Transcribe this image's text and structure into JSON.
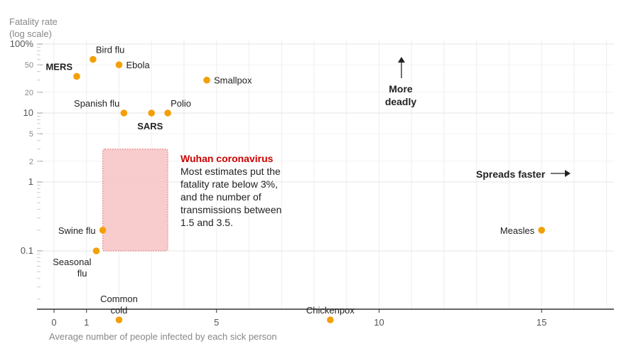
{
  "chart_data": {
    "type": "scatter",
    "title": "",
    "ylabel_lines": [
      "Fatality rate",
      "(log scale)"
    ],
    "xlabel": "Average number of people infected by each sick person",
    "yscale": "log",
    "xlim": [
      -0.5,
      17
    ],
    "ylim_log": [
      0.01,
      100
    ],
    "x_ticks": [
      {
        "v": 0,
        "label": "0"
      },
      {
        "v": 1,
        "label": "1"
      },
      {
        "v": 5,
        "label": "5"
      },
      {
        "v": 10,
        "label": "10"
      },
      {
        "v": 15,
        "label": "15"
      }
    ],
    "y_ticks": [
      {
        "v": 100,
        "label": "100%",
        "major": true
      },
      {
        "v": 50,
        "label": "50",
        "major": false
      },
      {
        "v": 20,
        "label": "20",
        "major": false
      },
      {
        "v": 10,
        "label": "10",
        "major": true
      },
      {
        "v": 5,
        "label": "5",
        "major": false
      },
      {
        "v": 2,
        "label": "2",
        "major": false
      },
      {
        "v": 1,
        "label": "1",
        "major": true
      },
      {
        "v": 0.1,
        "label": "0.1",
        "major": true
      }
    ],
    "colors": {
      "point": "#f2a007",
      "grid": "#eeeeee",
      "axis": "#333333",
      "tick": "#888888",
      "region_fill": "#f7c6c6",
      "region_stroke": "#e47777",
      "accent": "#cc0000",
      "text": "#222222"
    },
    "points": [
      {
        "name": "Bird flu",
        "x": 1.2,
        "y": 60,
        "bold": false,
        "label_pos": "above-right"
      },
      {
        "name": "MERS",
        "x": 0.7,
        "y": 34,
        "bold": true,
        "label_pos": "above-left"
      },
      {
        "name": "Ebola",
        "x": 2.0,
        "y": 50,
        "bold": false,
        "label_pos": "right"
      },
      {
        "name": "Smallpox",
        "x": 4.7,
        "y": 30,
        "bold": false,
        "label_pos": "right"
      },
      {
        "name": "Spanish flu",
        "x": 2.15,
        "y": 10,
        "bold": false,
        "label_pos": "above-left"
      },
      {
        "name": "SARS",
        "x": 3.0,
        "y": 10,
        "bold": true,
        "label_pos": "below"
      },
      {
        "name": "Polio",
        "x": 3.5,
        "y": 10,
        "bold": false,
        "label_pos": "above-right"
      },
      {
        "name": "Swine flu",
        "x": 1.5,
        "y": 0.2,
        "bold": false,
        "label_pos": "left"
      },
      {
        "name": "Seasonal flu",
        "x": 1.3,
        "y": 0.1,
        "bold": false,
        "label_pos": "below-left"
      },
      {
        "name": "Common cold",
        "x": 2.0,
        "y": 0.01,
        "bold": false,
        "label_pos": "above"
      },
      {
        "name": "Chickenpox",
        "x": 8.5,
        "y": 0.01,
        "bold": false,
        "label_pos": "above"
      },
      {
        "name": "Measles",
        "x": 15.0,
        "y": 0.2,
        "bold": false,
        "label_pos": "left"
      }
    ],
    "region": {
      "x_min": 1.5,
      "x_max": 3.5,
      "y_min": 0.1,
      "y_max": 3
    },
    "annotation": {
      "title": "Wuhan coronavirus",
      "body": "Most estimates put the fatality rate below 3%, and the number of transmissions between 1.5 and 3.5."
    },
    "callouts": {
      "more_deadly": [
        "More",
        "deadly"
      ],
      "spreads_faster": "Spreads faster"
    }
  }
}
